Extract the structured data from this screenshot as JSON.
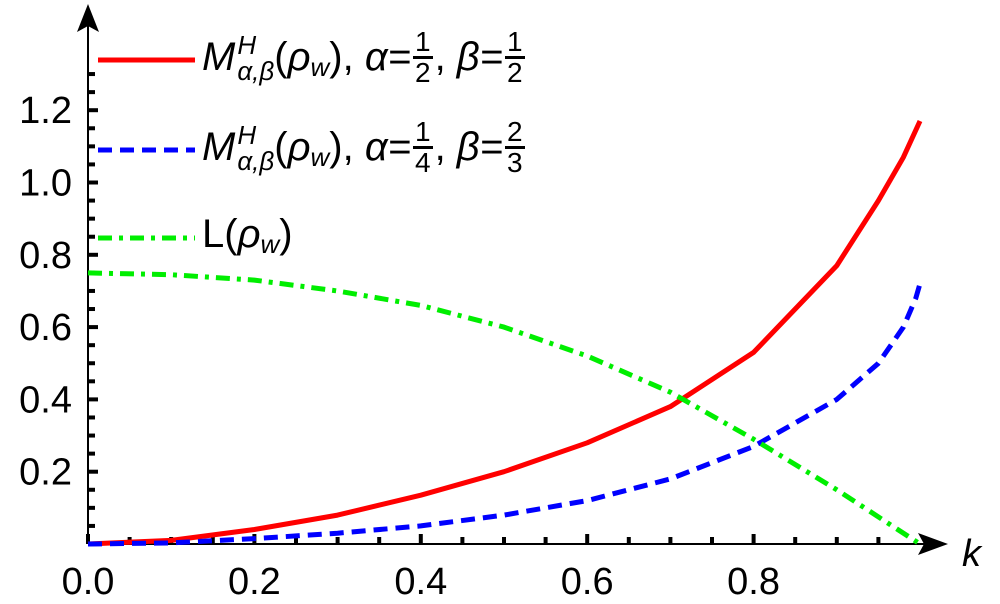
{
  "chart_data": {
    "type": "line",
    "title": "",
    "xlabel": "k",
    "ylabel": "",
    "xlim": [
      0,
      1.0
    ],
    "ylim": [
      0,
      1.4
    ],
    "x_ticks": [
      "0.0",
      "0.2",
      "0.4",
      "0.6",
      "0.8"
    ],
    "y_ticks": [
      "0.2",
      "0.4",
      "0.6",
      "0.8",
      "1.0",
      "1.2"
    ],
    "x_tick_values": [
      0,
      0.2,
      0.4,
      0.6,
      0.8
    ],
    "y_tick_values": [
      0.2,
      0.4,
      0.6,
      0.8,
      1.0,
      1.2
    ],
    "grid": false,
    "legend_position": "top-left",
    "series": [
      {
        "legend": {
          "func": "M",
          "sup": "H",
          "sub": "α,β",
          "arg": "ρ",
          "argsub": "w",
          "p1": "α=",
          "p1num": "1",
          "p1den": "2",
          "p2": "β=",
          "p2num": "1",
          "p2den": "2"
        },
        "color": "#ff0000",
        "style": "solid",
        "x": [
          0,
          0.1,
          0.2,
          0.3,
          0.4,
          0.5,
          0.6,
          0.7,
          0.8,
          0.9,
          0.95,
          0.98,
          1.0
        ],
        "y": [
          0,
          0.01,
          0.04,
          0.08,
          0.135,
          0.2,
          0.28,
          0.38,
          0.53,
          0.77,
          0.95,
          1.07,
          1.17
        ]
      },
      {
        "legend": {
          "func": "M",
          "sup": "H",
          "sub": "α,β",
          "arg": "ρ",
          "argsub": "w",
          "p1": "α=",
          "p1num": "1",
          "p1den": "4",
          "p2": "β=",
          "p2num": "2",
          "p2den": "3"
        },
        "color": "#0000ff",
        "style": "dashed",
        "x": [
          0,
          0.1,
          0.2,
          0.3,
          0.4,
          0.5,
          0.6,
          0.7,
          0.8,
          0.9,
          0.95,
          0.98,
          0.995,
          1.0
        ],
        "y": [
          0,
          0.003,
          0.015,
          0.03,
          0.05,
          0.08,
          0.12,
          0.18,
          0.27,
          0.4,
          0.5,
          0.6,
          0.68,
          0.72
        ]
      },
      {
        "legend": {
          "func": "L",
          "arg": "ρ",
          "argsub": "w"
        },
        "color": "#00ee00",
        "style": "dashdot",
        "x": [
          0,
          0.1,
          0.2,
          0.3,
          0.4,
          0.5,
          0.6,
          0.7,
          0.8,
          0.9,
          1.0
        ],
        "y": [
          0.75,
          0.745,
          0.73,
          0.7,
          0.66,
          0.6,
          0.52,
          0.42,
          0.29,
          0.15,
          0
        ]
      }
    ]
  }
}
